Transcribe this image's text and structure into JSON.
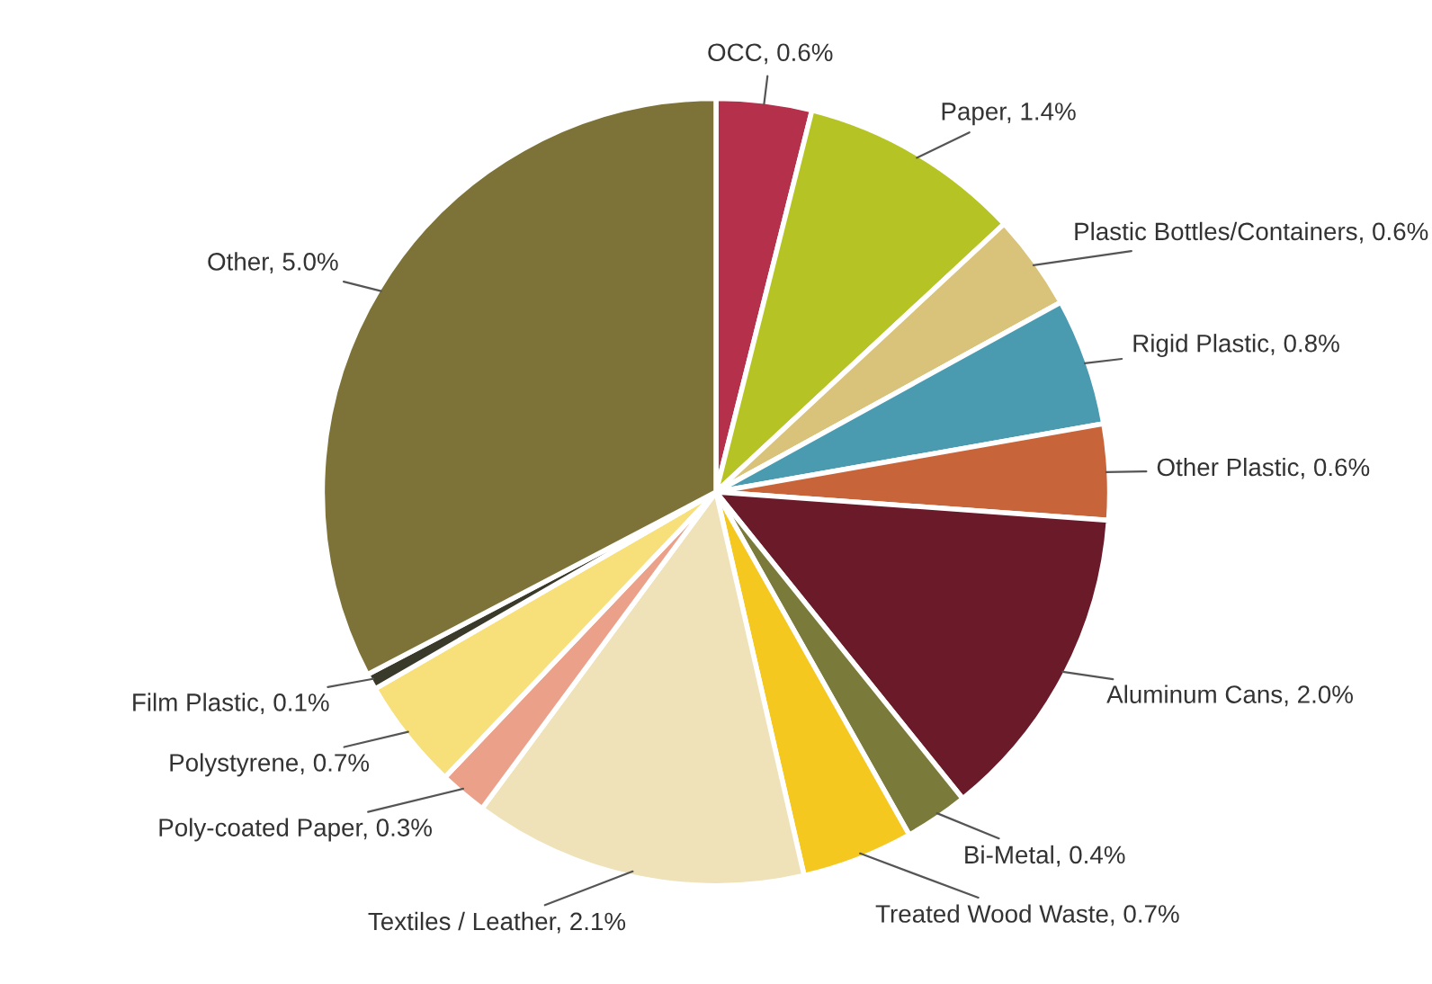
{
  "chart_data": {
    "type": "pie",
    "categories": [
      "OCC",
      "Paper",
      "Plastic Bottles/Containers",
      "Rigid Plastic",
      "Other Plastic",
      "Aluminum Cans",
      "Bi-Metal",
      "Treated Wood Waste",
      "Textiles / Leather",
      "Poly-coated Paper",
      "Polystyrene",
      "Film Plastic",
      "Other"
    ],
    "values": [
      0.6,
      1.4,
      0.6,
      0.8,
      0.6,
      2.0,
      0.4,
      0.7,
      2.1,
      0.3,
      0.7,
      0.1,
      5.0
    ],
    "value_labels": [
      "0.6%",
      "1.4%",
      "0.6%",
      "0.8%",
      "0.6%",
      "2.0%",
      "0.4%",
      "0.7%",
      "2.1%",
      "0.3%",
      "0.7%",
      "0.1%",
      "5.0%"
    ],
    "colors": [
      "#b5304a",
      "#b5c424",
      "#d9c27a",
      "#4a9bb0",
      "#c8643a",
      "#6b1a2a",
      "#7a7a3a",
      "#f5c820",
      "#efe2b8",
      "#eba08a",
      "#f7df7a",
      "#3a3a2a",
      "#7d7338"
    ]
  }
}
